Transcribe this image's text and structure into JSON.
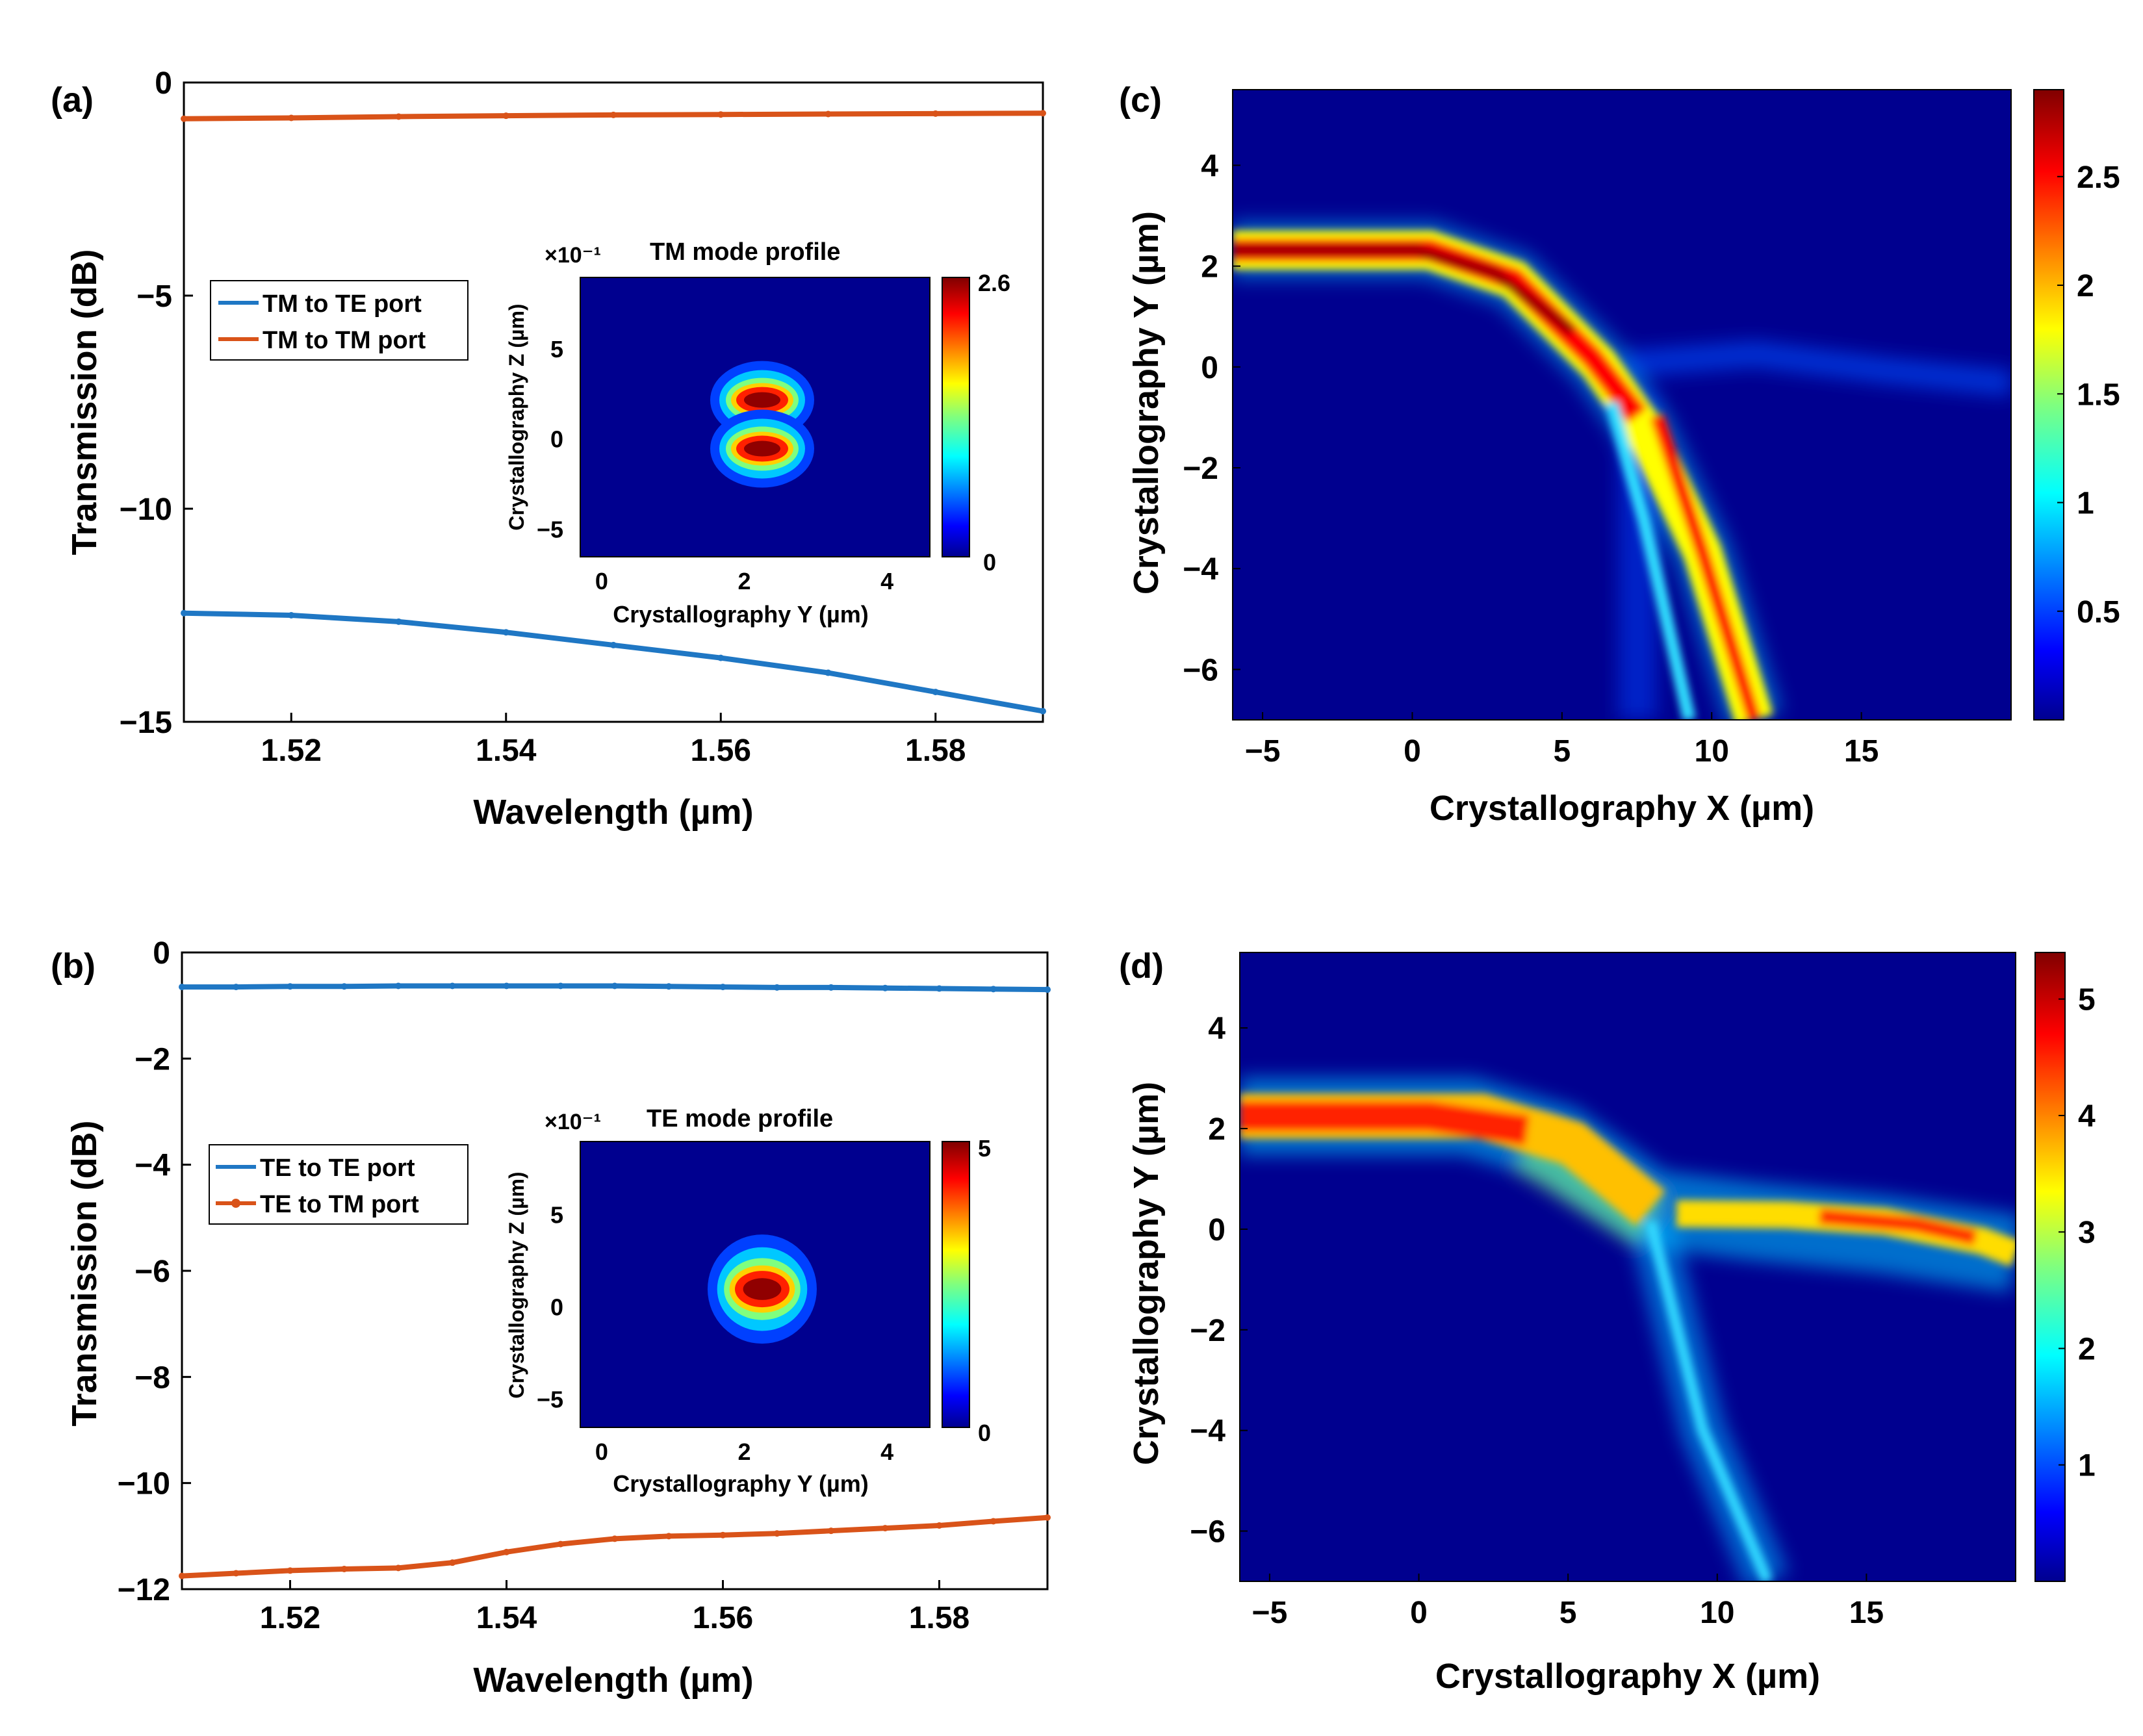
{
  "chart_data": [
    {
      "panel": "(a)",
      "type": "line",
      "xlabel": "Wavelength (µm)",
      "ylabel": "Transmission (dB)",
      "xlim": [
        1.51,
        1.59
      ],
      "ylim": [
        -15,
        0
      ],
      "xticks": [
        "1.52",
        "1.54",
        "1.56",
        "1.58"
      ],
      "yticks": [
        "0",
        "−5",
        "−10",
        "−15"
      ],
      "legend": "left",
      "x": [
        1.51,
        1.52,
        1.53,
        1.54,
        1.55,
        1.56,
        1.57,
        1.58,
        1.59
      ],
      "series": [
        {
          "name": "TM to TE port",
          "color": "#1f77c4",
          "values": [
            -12.45,
            -12.5,
            -12.65,
            -12.9,
            -13.2,
            -13.5,
            -13.85,
            -14.3,
            -14.75
          ]
        },
        {
          "name": "TM to TM port",
          "color": "#d95319",
          "values": [
            -0.85,
            -0.83,
            -0.8,
            -0.78,
            -0.76,
            -0.75,
            -0.74,
            -0.73,
            -0.72
          ]
        }
      ]
    },
    {
      "panel": "(b)",
      "type": "line",
      "xlabel": "Wavelength (µm)",
      "ylabel": "Transmission (dB)",
      "xlim": [
        1.51,
        1.59
      ],
      "ylim": [
        -12,
        0
      ],
      "xticks": [
        "1.52",
        "1.54",
        "1.56",
        "1.58"
      ],
      "yticks": [
        "0",
        "−2",
        "−4",
        "−6",
        "−8",
        "−10",
        "−12"
      ],
      "legend": "left",
      "x": [
        1.51,
        1.515,
        1.52,
        1.525,
        1.53,
        1.535,
        1.54,
        1.545,
        1.55,
        1.555,
        1.56,
        1.565,
        1.57,
        1.575,
        1.58,
        1.585,
        1.59
      ],
      "series": [
        {
          "name": "TE to TE port",
          "color": "#1f77c4",
          "values": [
            -0.65,
            -0.65,
            -0.64,
            -0.64,
            -0.63,
            -0.63,
            -0.63,
            -0.63,
            -0.63,
            -0.64,
            -0.65,
            -0.66,
            -0.66,
            -0.67,
            -0.68,
            -0.69,
            -0.7
          ]
        },
        {
          "name": "TE to TM port",
          "color": "#d95319",
          "values": [
            -11.75,
            -11.7,
            -11.65,
            -11.62,
            -11.6,
            -11.5,
            -11.3,
            -11.15,
            -11.05,
            -11.0,
            -10.98,
            -10.95,
            -10.9,
            -10.85,
            -10.8,
            -10.72,
            -10.65
          ]
        }
      ]
    },
    {
      "panel": "inset-a",
      "type": "heatmap",
      "title": "TM mode profile",
      "xlabel": "Crystallography Y (µm)",
      "ylabel": "Crystallography Z (µm)",
      "multiplier": "×10⁻¹",
      "xlim": [
        -0.3,
        4.6
      ],
      "ylim": [
        -6.5,
        9
      ],
      "xticks": [
        "0",
        "2",
        "4"
      ],
      "yticks": [
        "5",
        "0",
        "−5"
      ],
      "colorbar_labels": [
        "2.6",
        "0"
      ],
      "spots": [
        {
          "x": 2.25,
          "y": 2.2,
          "amp": 1.0
        },
        {
          "x": 2.25,
          "y": -0.5,
          "amp": 0.95
        }
      ]
    },
    {
      "panel": "inset-b",
      "type": "heatmap",
      "title": "TE mode profile",
      "xlabel": "Crystallography Y (µm)",
      "ylabel": "Crystallography Z (µm)",
      "multiplier": "×10⁻¹",
      "xlim": [
        -0.3,
        4.6
      ],
      "ylim": [
        -6.5,
        9
      ],
      "xticks": [
        "0",
        "2",
        "4"
      ],
      "yticks": [
        "5",
        "0",
        "−5"
      ],
      "colorbar_labels": [
        "5",
        "0"
      ],
      "spots": [
        {
          "x": 2.25,
          "y": 1.0,
          "amp": 1.0
        }
      ]
    },
    {
      "panel": "(c)",
      "type": "heatmap",
      "xlabel": "Crystallography X (µm)",
      "ylabel": "Crystallography Y (µm)",
      "xlim": [
        -6,
        20
      ],
      "ylim": [
        -7,
        5.5
      ],
      "xticks": [
        "−5",
        "0",
        "5",
        "10",
        "15"
      ],
      "yticks": [
        "4",
        "2",
        "0",
        "−2",
        "−4",
        "−6"
      ],
      "colorbar_labels": [
        "2.5",
        "2",
        "1.5",
        "1",
        "0.5"
      ],
      "colorbar_range": [
        0,
        2.9
      ]
    },
    {
      "panel": "(d)",
      "type": "heatmap",
      "xlabel": "Crystallography X (µm)",
      "ylabel": "Crystallography Y (µm)",
      "xlim": [
        -6,
        20
      ],
      "ylim": [
        -7,
        5.5
      ],
      "xticks": [
        "−5",
        "0",
        "5",
        "10",
        "15"
      ],
      "yticks": [
        "4",
        "2",
        "0",
        "−2",
        "−4",
        "−6"
      ],
      "colorbar_labels": [
        "5",
        "4",
        "3",
        "2",
        "1"
      ],
      "colorbar_range": [
        0,
        5.4
      ]
    }
  ],
  "colors": {
    "jet_low": "#00008f",
    "jet_high": "#800000"
  }
}
